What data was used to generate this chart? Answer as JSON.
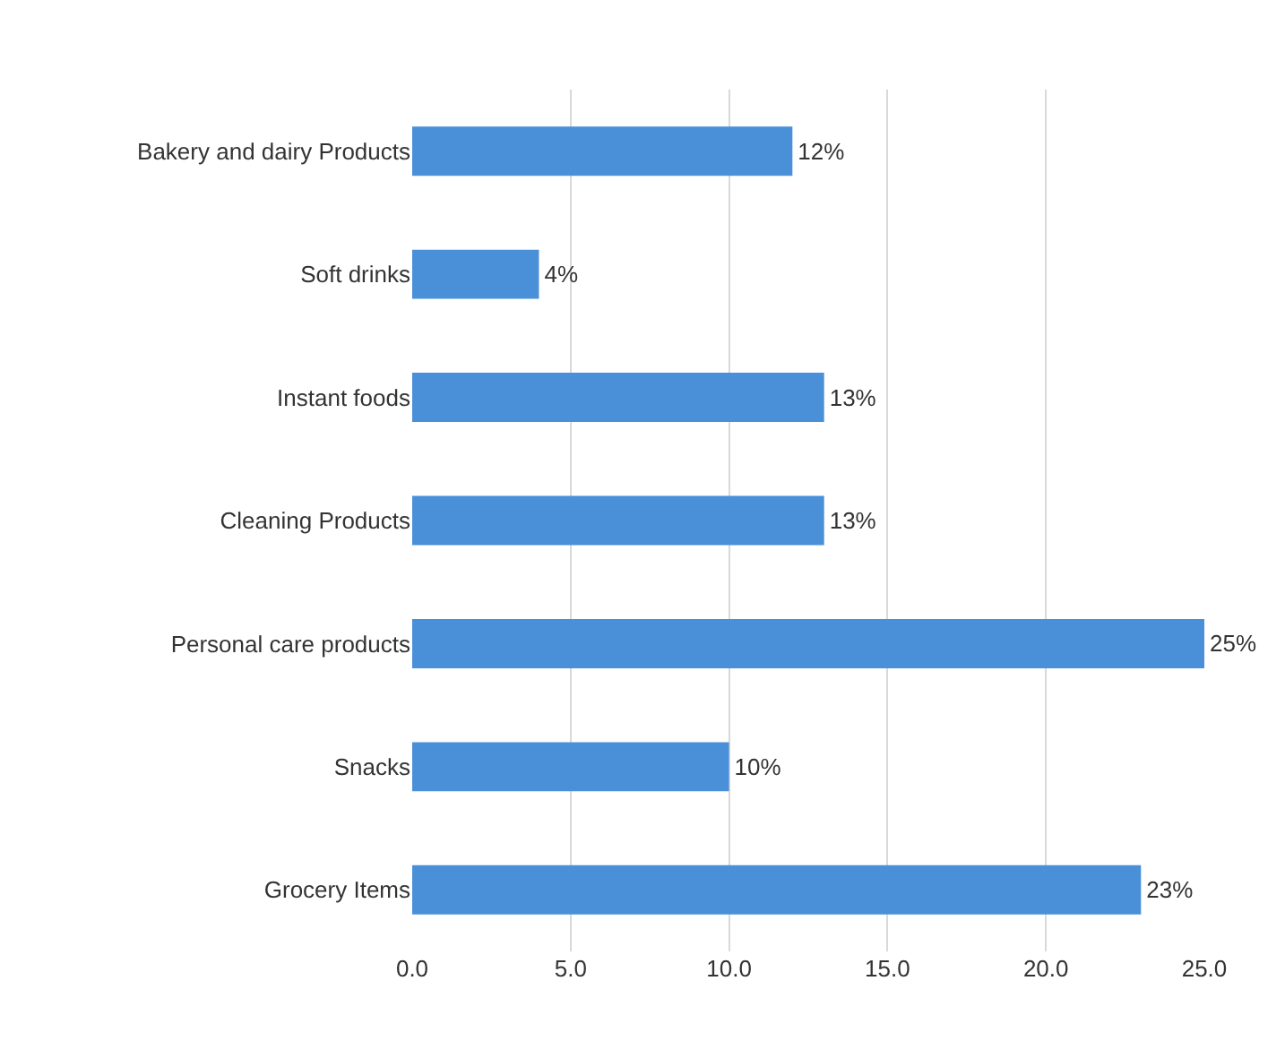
{
  "chart_data": {
    "type": "bar",
    "orientation": "horizontal",
    "categories": [
      "Bakery and dairy Products",
      "Soft drinks",
      "Instant foods",
      "Cleaning Products",
      "Personal care products",
      "Snacks",
      "Grocery Items"
    ],
    "values": [
      12,
      4,
      13,
      13,
      25,
      10,
      23
    ],
    "value_labels": [
      "12%",
      "4%",
      "13%",
      "13%",
      "25%",
      "10%",
      "23%"
    ],
    "color": "#4a90d9",
    "xlim": [
      0,
      25
    ],
    "xticks": [
      {
        "value": 0,
        "label": "0.0"
      },
      {
        "value": 5,
        "label": "5.0"
      },
      {
        "value": 10,
        "label": "10.0"
      },
      {
        "value": 15,
        "label": "15.0"
      },
      {
        "value": 20,
        "label": "20.0"
      },
      {
        "value": 25,
        "label": "25.0"
      }
    ],
    "grid": "x"
  }
}
